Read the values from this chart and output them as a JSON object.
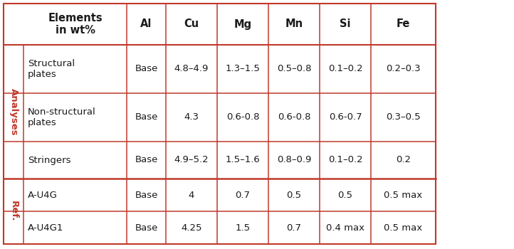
{
  "col_headers": [
    "Elements\nin wt%",
    "Al",
    "Cu",
    "Mg",
    "Mn",
    "Si",
    "Fe"
  ],
  "group1_label": "Analyses",
  "group2_label": "Ref.",
  "rows": [
    {
      "label": "Structural\nplates",
      "Al": "Base",
      "Cu": "4.8–4.9",
      "Mg": "1.3–1.5",
      "Mn": "0.5–0.8",
      "Si": "0.1–0.2",
      "Fe": "0.2–0.3"
    },
    {
      "label": "Non-structural\nplates",
      "Al": "Base",
      "Cu": "4.3",
      "Mg": "0.6-0.8",
      "Mn": "0.6-0.8",
      "Si": "0.6-0.7",
      "Fe": "0.3–0.5"
    },
    {
      "label": "Stringers",
      "Al": "Base",
      "Cu": "4.9–5.2",
      "Mg": "1.5–1.6",
      "Mn": "0.8–0.9",
      "Si": "0.1–0.2",
      "Fe": "0.2"
    },
    {
      "label": "A-U4G",
      "Al": "Base",
      "Cu": "4",
      "Mg": "0.7",
      "Mn": "0.5",
      "Si": "0.5",
      "Fe": "0.5 max"
    },
    {
      "label": "A-U4G1",
      "Al": "Base",
      "Cu": "4.25",
      "Mg": "1.5",
      "Mn": "0.7",
      "Si": "0.4 max",
      "Fe": "0.5 max"
    }
  ],
  "border_color": "#c0392b",
  "text_color": "#1a1a1a",
  "group_label_color": "#c0392b",
  "font_size_header": 10.5,
  "font_size_cell": 9.5,
  "font_size_group": 9.5
}
